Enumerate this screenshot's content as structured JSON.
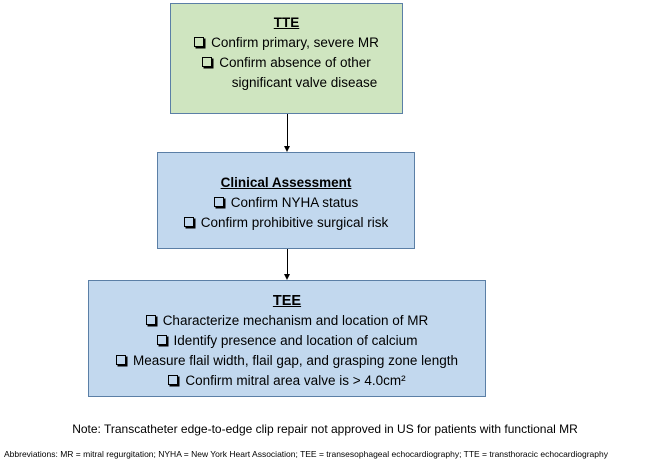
{
  "tte_box": {
    "title": "TTE",
    "items": [
      {
        "text": "Confirm primary, severe MR",
        "continuation": ""
      },
      {
        "text": "Confirm absence of other",
        "continuation": "significant valve disease"
      }
    ]
  },
  "clinical_box": {
    "title": "Clinical Assessment",
    "items": [
      {
        "text": "Confirm NYHA status",
        "continuation": ""
      },
      {
        "text": "Confirm prohibitive surgical risk",
        "continuation": ""
      }
    ]
  },
  "tee_box": {
    "title": "TEE",
    "items": [
      {
        "text": "Characterize mechanism and location of MR",
        "continuation": ""
      },
      {
        "text": "Identify presence and location of calcium",
        "continuation": ""
      },
      {
        "text": "Measure flail width, flail gap, and grasping zone length",
        "continuation": ""
      },
      {
        "text": "Confirm mitral area valve is  > 4.0cm²",
        "continuation": ""
      }
    ]
  },
  "note": "Note: Transcatheter edge-to-edge clip repair not approved in US for patients with functional MR",
  "abbreviations": "Abbreviations:  MR = mitral regurgitation; NYHA = New York Heart Association; TEE = transesophageal echocardiography; TTE = transthoracic echocardiography",
  "colors": {
    "tte_fill": "#cfe5c0",
    "assessment_fill": "#c2d8ee",
    "border": "#5b7fa6"
  },
  "icons": {
    "checkbox": "checkbox-icon",
    "connector": "arrow-down-icon"
  }
}
